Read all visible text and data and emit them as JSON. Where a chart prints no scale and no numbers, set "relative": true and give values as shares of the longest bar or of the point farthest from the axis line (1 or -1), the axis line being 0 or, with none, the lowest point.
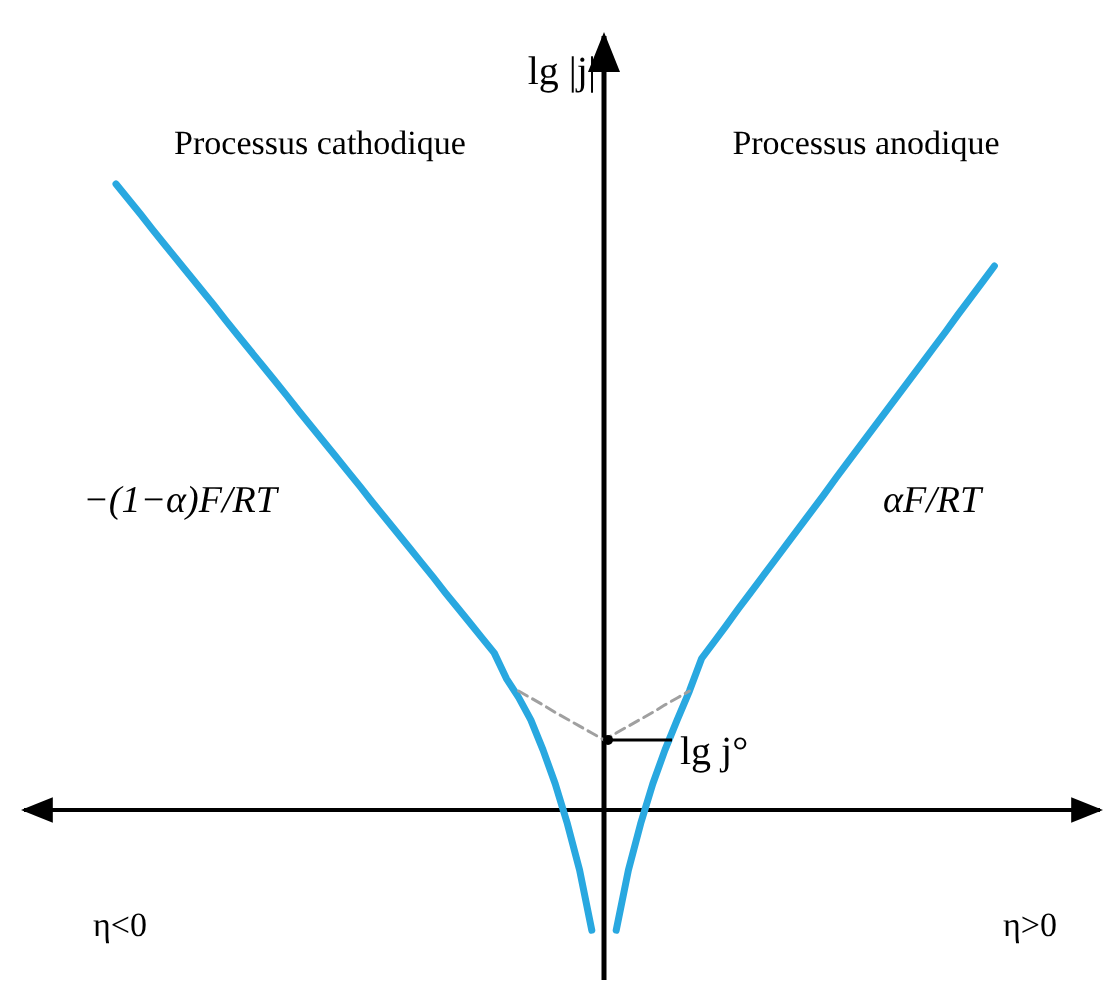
{
  "chart_data": {
    "type": "line",
    "relative": true,
    "ylabel": "lg |j|",
    "categories": [
      null,
      null,
      null,
      null,
      null,
      null,
      null,
      null,
      null,
      null,
      null,
      null,
      null,
      null,
      null,
      null,
      null,
      null,
      null,
      null,
      null,
      null,
      null,
      null,
      null,
      null,
      null,
      null,
      null,
      null,
      null,
      null,
      null,
      null,
      null,
      null,
      null,
      null,
      null,
      null,
      null,
      null,
      null,
      null,
      null,
      null,
      null,
      null,
      null,
      null,
      null,
      null,
      null,
      null,
      null,
      null,
      null,
      null,
      null,
      null,
      null,
      null,
      null,
      null,
      null,
      null,
      null,
      null,
      null,
      null,
      null,
      null,
      null,
      null,
      null,
      null,
      null,
      null,
      null,
      null,
      null
    ],
    "series": [
      {
        "color": "#29a8e0",
        "values": [
          1,
          0.976,
          0.952,
          0.927,
          0.903,
          0.879,
          0.855,
          0.831,
          0.807,
          0.782,
          0.758,
          0.734,
          0.71,
          0.686,
          0.662,
          0.637,
          0.613,
          0.589,
          0.565,
          0.541,
          0.517,
          0.492,
          0.468,
          0.444,
          0.42,
          0.396,
          0.372,
          0.347,
          0.323,
          0.299,
          0.275,
          0.251,
          0.21,
          0.18,
          0.144,
          0.096,
          0.042,
          -0.022,
          -0.096,
          -0.192,
          null,
          null,
          null,
          null,
          null,
          null,
          null,
          null,
          null,
          null,
          null,
          null,
          null,
          null,
          null,
          null,
          null,
          null,
          null,
          null,
          null,
          null,
          null,
          null,
          null,
          null,
          null,
          null,
          null,
          null,
          null,
          null,
          null,
          null,
          null,
          null,
          null,
          null,
          null,
          null,
          null
        ]
      },
      {
        "color": "#29a8e0",
        "values": [
          null,
          null,
          null,
          null,
          null,
          null,
          null,
          null,
          null,
          null,
          null,
          null,
          null,
          null,
          null,
          null,
          null,
          null,
          null,
          null,
          null,
          null,
          null,
          null,
          null,
          null,
          null,
          null,
          null,
          null,
          null,
          null,
          null,
          null,
          null,
          null,
          null,
          null,
          null,
          null,
          null,
          -0.192,
          -0.096,
          -0.022,
          0.042,
          0.096,
          0.144,
          0.19,
          0.242,
          0.268,
          0.294,
          0.321,
          0.347,
          0.373,
          0.399,
          0.425,
          0.451,
          0.477,
          0.503,
          0.53,
          0.556,
          0.582,
          0.608,
          0.634,
          0.66,
          0.686,
          0.712,
          0.738,
          0.764,
          0.791,
          0.817,
          0.843,
          0.869,
          null,
          null,
          null,
          null,
          null,
          null,
          null,
          null
        ]
      },
      {
        "color": "#a0a0a0",
        "line_style": "dashed",
        "values": [
          null,
          null,
          null,
          null,
          null,
          null,
          null,
          null,
          null,
          null,
          null,
          null,
          null,
          null,
          null,
          null,
          null,
          null,
          null,
          null,
          null,
          null,
          null,
          null,
          null,
          null,
          null,
          null,
          null,
          null,
          null,
          null,
          null,
          0.19,
          0.179,
          0.168,
          0.156,
          0.145,
          0.134,
          0.123,
          0.112,
          0.123,
          0.134,
          0.145,
          0.156,
          0.168,
          0.179,
          0.19,
          null,
          null,
          null,
          null,
          null,
          null,
          null,
          null,
          null,
          null,
          null,
          null,
          null,
          null,
          null,
          null,
          null,
          null,
          null,
          null,
          null,
          null,
          null,
          null,
          null,
          null,
          null,
          null,
          null,
          null,
          null,
          null,
          null
        ]
      }
    ],
    "annotations": [
      "Processus cathodique",
      "Processus anodique",
      "−(1−α)F/RT",
      "αF/RT",
      "lg j°",
      "η<0",
      "η>0"
    ]
  }
}
